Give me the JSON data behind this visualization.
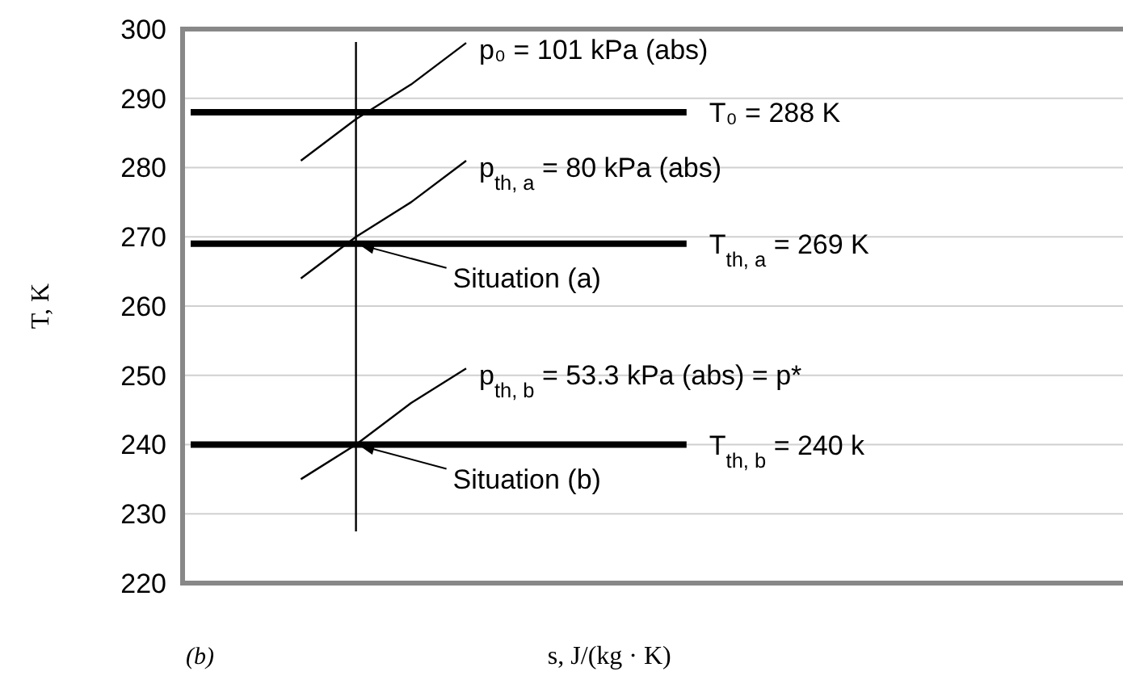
{
  "chart_data": {
    "type": "line",
    "ylabel": "T, K",
    "xlabel": "s, J/(kg · K)",
    "categories": [
      null,
      null,
      null,
      null,
      null,
      null,
      null,
      null,
      null,
      null,
      null,
      null,
      null,
      null,
      null,
      null,
      null,
      null
    ],
    "ylim": [
      220,
      300
    ],
    "yticks": [
      220,
      230,
      240,
      250,
      260,
      270,
      280,
      290,
      300
    ],
    "grid": "y",
    "marker": "none",
    "line_style": "solid",
    "series": [
      {
        "name": "T₀ = 288 K",
        "color": "#000000",
        "values": [
          288,
          288,
          288,
          288,
          288,
          288,
          288,
          288,
          288,
          288,
          null,
          null,
          null,
          null,
          null,
          null,
          null,
          null
        ]
      },
      {
        "name": "T$_{th, a}$ = 269 K",
        "color": "#000000",
        "values": [
          269,
          269,
          269,
          269,
          269,
          269,
          269,
          269,
          269,
          269,
          null,
          null,
          null,
          null,
          null,
          null,
          null,
          null
        ]
      },
      {
        "name": "T$_{th, b}$ = 240 k",
        "color": "#000000",
        "values": [
          240,
          240,
          240,
          240,
          240,
          240,
          240,
          240,
          240,
          240,
          null,
          null,
          null,
          null,
          null,
          null,
          null,
          null
        ]
      },
      {
        "name": "p₀ = 101 kPa (abs)",
        "color": "#000000",
        "values": [
          null,
          null,
          281,
          287,
          292,
          298,
          null,
          null,
          null,
          null,
          null,
          null,
          null,
          null,
          null,
          null,
          null,
          null
        ]
      },
      {
        "name": "p$_{th, a}$ = 80 kPa (abs)",
        "color": "#000000",
        "values": [
          null,
          null,
          264,
          270,
          275,
          281,
          null,
          null,
          null,
          null,
          null,
          null,
          null,
          null,
          null,
          null,
          null,
          null
        ]
      },
      {
        "name": "p$_{th, b}$ = 53.3 kPa (abs) = p*",
        "color": "#000000",
        "values": [
          null,
          null,
          235,
          240,
          246,
          251,
          null,
          null,
          null,
          null,
          null,
          null,
          null,
          null,
          null,
          null,
          null,
          null
        ]
      }
    ],
    "annotations": [
      {
        "text": "Situation (a)",
        "y": 269
      },
      {
        "text": "Situation (b)",
        "y": 240
      },
      "(b)"
    ]
  }
}
